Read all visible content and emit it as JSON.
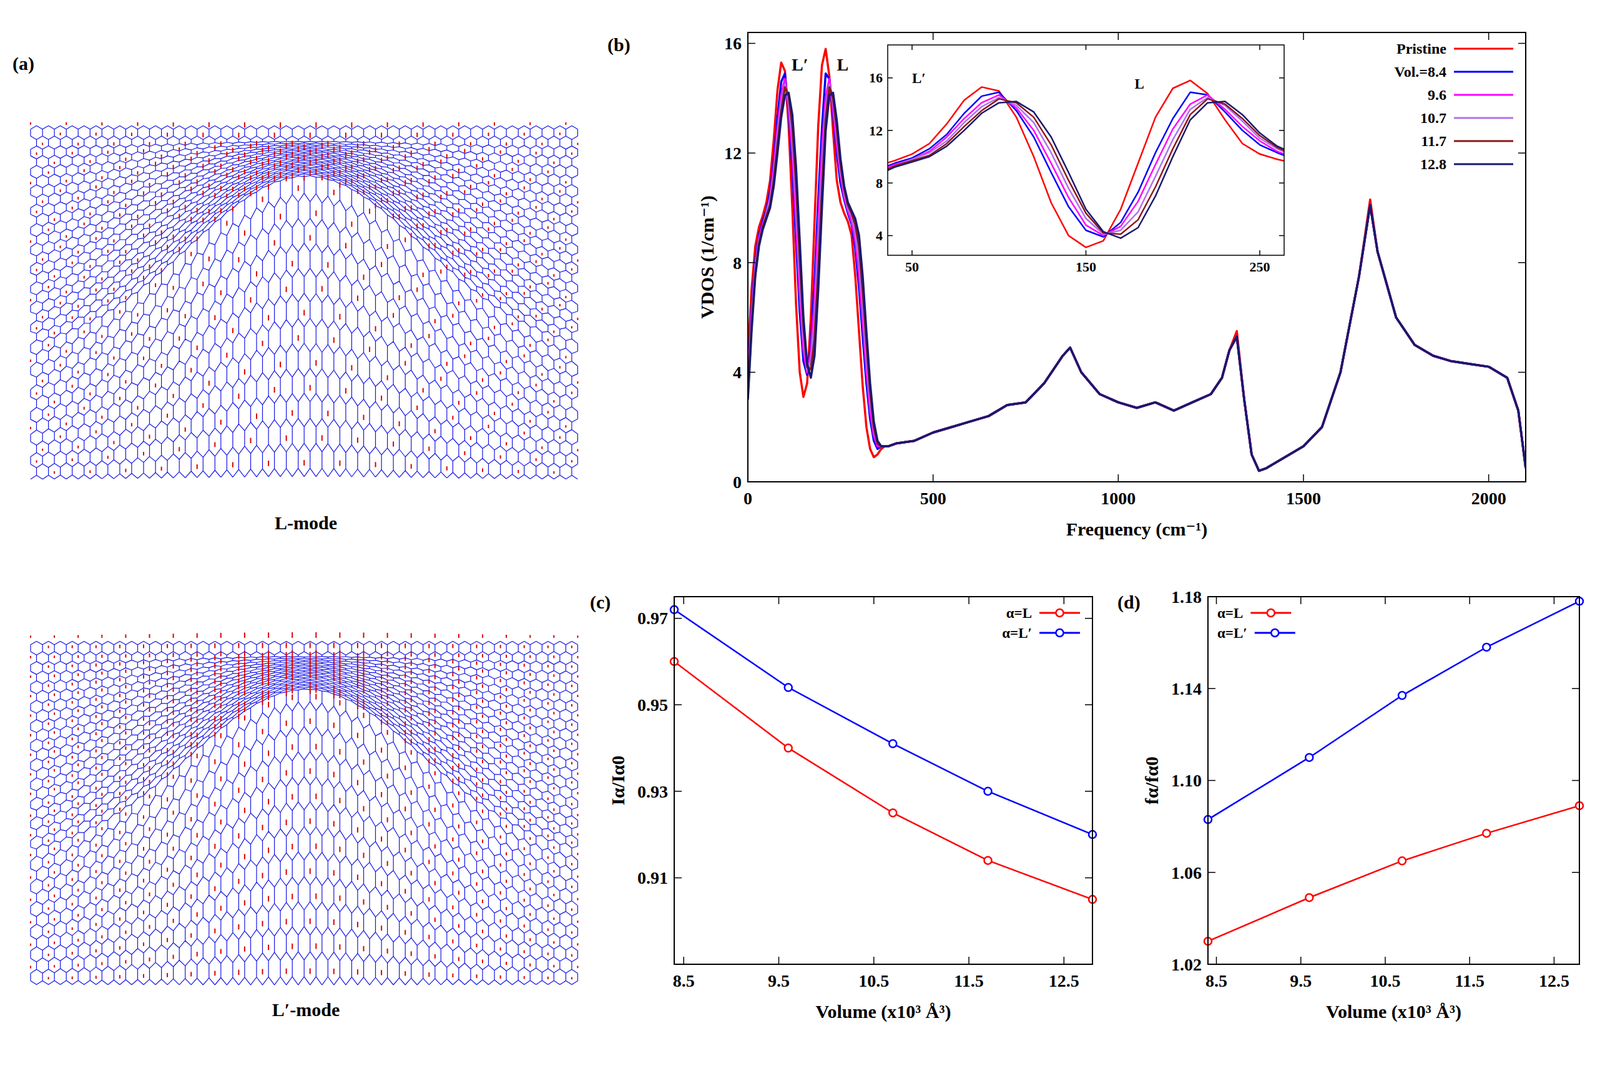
{
  "panel_a": {
    "label": "(a)",
    "modes": [
      "L-mode",
      "L′-mode"
    ]
  },
  "chart_data": [
    {
      "type": "line",
      "label": "(b)",
      "x_label": "Frequency (cm⁻¹)",
      "y_label": "VDOS (1/cm⁻¹)",
      "x": [
        0,
        10,
        20,
        30,
        40,
        50,
        60,
        70,
        80,
        90,
        100,
        110,
        120,
        130,
        140,
        150,
        160,
        170,
        180,
        190,
        200,
        210,
        220,
        230,
        240,
        250,
        260,
        270,
        280,
        290,
        300,
        310,
        320,
        330,
        340,
        350,
        360,
        370,
        380,
        400,
        450,
        500,
        550,
        600,
        650,
        700,
        750,
        800,
        850,
        870,
        900,
        950,
        1000,
        1050,
        1100,
        1150,
        1200,
        1250,
        1280,
        1300,
        1320,
        1340,
        1360,
        1380,
        1400,
        1450,
        1500,
        1550,
        1600,
        1650,
        1680,
        1700,
        1750,
        1800,
        1850,
        1900,
        1950,
        2000,
        2050,
        2080,
        2100
      ],
      "xlim": [
        0,
        2100
      ],
      "xticks": [
        0,
        500,
        1000,
        1500,
        2000
      ],
      "ylim": [
        0,
        16.4
      ],
      "yticks": [
        0,
        4,
        8,
        12,
        16
      ],
      "legend": "top-right",
      "annotations": [
        {
          "text": "L′",
          "x": 118,
          "y": 15.0
        },
        {
          "text": "L",
          "x": 240,
          "y": 15.0
        }
      ],
      "series": [
        {
          "name": "Pristine",
          "color": "#ff0000",
          "values": [
            4.5,
            7.0,
            8.6,
            9.3,
            9.7,
            10.2,
            11.0,
            12.5,
            14.3,
            15.3,
            15.0,
            13.0,
            10.0,
            6.5,
            4.0,
            3.1,
            3.6,
            6.0,
            9.5,
            13.0,
            15.2,
            15.8,
            14.8,
            12.8,
            11.0,
            10.2,
            9.8,
            9.5,
            9.0,
            7.5,
            5.5,
            3.5,
            2.0,
            1.2,
            0.9,
            1.0,
            1.2,
            1.3,
            1.3,
            1.4,
            1.5,
            1.8,
            2.0,
            2.2,
            2.4,
            2.8,
            2.9,
            3.6,
            4.6,
            4.9,
            4.0,
            3.2,
            2.9,
            2.7,
            2.9,
            2.6,
            2.9,
            3.2,
            3.8,
            4.8,
            5.5,
            3.0,
            1.0,
            0.4,
            0.5,
            0.9,
            1.3,
            2.0,
            4.0,
            7.5,
            10.3,
            8.4,
            6.0,
            5.0,
            4.6,
            4.4,
            4.3,
            4.2,
            3.8,
            2.6,
            0.5
          ]
        },
        {
          "name": "Vol.=8.4",
          "color": "#0000ff",
          "values": [
            3.8,
            6.3,
            8.1,
            9.0,
            9.5,
            9.9,
            10.6,
            11.7,
            13.3,
            14.6,
            14.9,
            13.5,
            11.5,
            8.8,
            6.2,
            4.4,
            3.9,
            5.0,
            7.3,
            10.3,
            12.9,
            14.9,
            14.7,
            13.4,
            12.0,
            10.9,
            10.3,
            9.8,
            9.4,
            8.5,
            7.1,
            5.3,
            3.6,
            2.3,
            1.5,
            1.2,
            1.3,
            1.3,
            1.3,
            1.4,
            1.5,
            1.8,
            2.0,
            2.2,
            2.4,
            2.8,
            2.9,
            3.6,
            4.6,
            4.9,
            4.0,
            3.2,
            2.9,
            2.7,
            2.9,
            2.6,
            2.9,
            3.2,
            3.8,
            4.8,
            5.3,
            3.0,
            1.0,
            0.4,
            0.5,
            0.9,
            1.3,
            2.0,
            4.0,
            7.5,
            10.1,
            8.4,
            6.0,
            5.0,
            4.6,
            4.4,
            4.3,
            4.2,
            3.8,
            2.6,
            0.5
          ]
        },
        {
          "name": "9.6",
          "color": "#ff00ff",
          "values": [
            3.6,
            6.1,
            7.9,
            8.9,
            9.4,
            9.8,
            10.4,
            11.5,
            12.9,
            14.1,
            14.7,
            13.7,
            12.0,
            9.5,
            6.9,
            4.8,
            4.0,
            4.7,
            6.6,
            9.4,
            12.1,
            14.0,
            14.7,
            13.6,
            12.3,
            11.2,
            10.4,
            9.9,
            9.5,
            8.8,
            7.6,
            5.9,
            4.1,
            2.6,
            1.7,
            1.3,
            1.3,
            1.3,
            1.3,
            1.4,
            1.5,
            1.8,
            2.0,
            2.2,
            2.4,
            2.8,
            2.9,
            3.6,
            4.6,
            4.9,
            4.0,
            3.2,
            2.9,
            2.7,
            2.9,
            2.6,
            2.9,
            3.2,
            3.8,
            4.8,
            5.3,
            3.0,
            1.0,
            0.4,
            0.5,
            0.9,
            1.3,
            2.0,
            4.0,
            7.5,
            10.1,
            8.4,
            6.0,
            5.0,
            4.6,
            4.4,
            4.3,
            4.2,
            3.8,
            2.6,
            0.5
          ]
        },
        {
          "name": "10.7",
          "color": "#b070f0",
          "values": [
            3.4,
            5.9,
            7.8,
            8.8,
            9.3,
            9.8,
            10.3,
            11.2,
            12.6,
            13.8,
            14.5,
            13.9,
            12.6,
            10.3,
            7.6,
            5.3,
            4.1,
            4.4,
            5.8,
            8.5,
            11.3,
            13.6,
            14.5,
            13.9,
            12.7,
            11.4,
            10.6,
            10.0,
            9.7,
            9.1,
            8.1,
            6.5,
            4.6,
            3.0,
            1.9,
            1.4,
            1.3,
            1.3,
            1.3,
            1.4,
            1.5,
            1.8,
            2.0,
            2.2,
            2.4,
            2.8,
            2.9,
            3.6,
            4.6,
            4.9,
            4.0,
            3.2,
            2.9,
            2.7,
            2.9,
            2.6,
            2.9,
            3.2,
            3.8,
            4.8,
            5.3,
            3.0,
            1.0,
            0.4,
            0.5,
            0.9,
            1.3,
            2.0,
            4.0,
            7.5,
            10.1,
            8.4,
            6.0,
            5.0,
            4.6,
            4.4,
            4.3,
            4.2,
            3.8,
            2.6,
            0.5
          ]
        },
        {
          "name": "11.7",
          "color": "#8b1a1a",
          "values": [
            3.2,
            5.7,
            7.6,
            8.7,
            9.3,
            9.7,
            10.1,
            11.0,
            12.3,
            13.5,
            14.4,
            14.1,
            13.0,
            10.9,
            8.2,
            5.7,
            4.2,
            4.1,
            5.2,
            7.7,
            10.6,
            13.2,
            14.4,
            14.0,
            12.9,
            11.6,
            10.7,
            10.1,
            9.8,
            9.4,
            8.6,
            7.0,
            5.1,
            3.3,
            2.0,
            1.4,
            1.3,
            1.3,
            1.3,
            1.4,
            1.5,
            1.8,
            2.0,
            2.2,
            2.4,
            2.8,
            2.9,
            3.6,
            4.6,
            4.9,
            4.0,
            3.2,
            2.9,
            2.7,
            2.9,
            2.6,
            2.9,
            3.2,
            3.8,
            4.8,
            5.3,
            3.0,
            1.0,
            0.4,
            0.5,
            0.9,
            1.3,
            2.0,
            4.0,
            7.5,
            10.1,
            8.4,
            6.0,
            5.0,
            4.6,
            4.4,
            4.3,
            4.2,
            3.8,
            2.6,
            0.5
          ]
        },
        {
          "name": "12.8",
          "color": "#191970",
          "values": [
            3.0,
            5.5,
            7.5,
            8.6,
            9.2,
            9.6,
            10.0,
            10.8,
            12.0,
            13.3,
            14.1,
            14.2,
            13.4,
            11.5,
            8.8,
            6.0,
            4.3,
            3.8,
            4.6,
            7.0,
            10.0,
            12.8,
            14.1,
            14.2,
            13.2,
            11.8,
            10.8,
            10.2,
            9.9,
            9.6,
            9.0,
            7.5,
            5.5,
            3.6,
            2.2,
            1.5,
            1.3,
            1.3,
            1.3,
            1.4,
            1.5,
            1.8,
            2.0,
            2.2,
            2.4,
            2.8,
            2.9,
            3.6,
            4.6,
            4.9,
            4.0,
            3.2,
            2.9,
            2.7,
            2.9,
            2.6,
            2.9,
            3.2,
            3.8,
            4.8,
            5.3,
            3.0,
            1.0,
            0.4,
            0.5,
            0.9,
            1.3,
            2.0,
            4.0,
            7.5,
            10.1,
            8.4,
            6.0,
            5.0,
            4.6,
            4.4,
            4.3,
            4.2,
            3.8,
            2.6,
            0.5
          ]
        }
      ]
    },
    {
      "type": "inset",
      "xlim": [
        36,
        264
      ],
      "xticks": [
        50,
        150,
        250
      ],
      "ylim": [
        2.5,
        18.5
      ],
      "yticks": [
        4,
        8,
        12,
        16
      ],
      "annotations": [
        {
          "text": "L′",
          "x": 50,
          "y": 15.6
        },
        {
          "text": "L",
          "x": 178,
          "y": 15.2
        }
      ]
    },
    {
      "type": "line",
      "label": "(c)",
      "x_label": "Volume (x10³ Å³)",
      "y_label": "Iα/Iα0",
      "x": [
        8.4,
        9.6,
        10.7,
        11.7,
        12.8
      ],
      "xlim": [
        8.4,
        12.8
      ],
      "xticks": [
        8.5,
        9.5,
        10.5,
        11.5,
        12.5
      ],
      "ylim": [
        0.89,
        0.975
      ],
      "yticks": [
        0.91,
        0.93,
        0.95,
        0.97
      ],
      "legend": "top-right",
      "marker": "circle",
      "series": [
        {
          "name": "α=L",
          "color": "#ff0000",
          "values": [
            0.96,
            0.94,
            0.925,
            0.914,
            0.905
          ]
        },
        {
          "name": "α=L′",
          "color": "#0000ff",
          "values": [
            0.972,
            0.954,
            0.941,
            0.93,
            0.92
          ]
        }
      ]
    },
    {
      "type": "line",
      "label": "(d)",
      "x_label": "Volume (x10³ Å³)",
      "y_label": "fα/fα0",
      "x": [
        8.4,
        9.6,
        10.7,
        11.7,
        12.8
      ],
      "xlim": [
        8.4,
        12.8
      ],
      "xticks": [
        8.5,
        9.5,
        10.5,
        11.5,
        12.5
      ],
      "ylim": [
        1.02,
        1.18
      ],
      "yticks": [
        1.02,
        1.06,
        {
          "value": 1.1,
          "label": "1.10"
        },
        1.14,
        1.18
      ],
      "legend": "top-left",
      "marker": "circle",
      "series": [
        {
          "name": "α=L",
          "color": "#ff0000",
          "values": [
            1.03,
            1.049,
            1.065,
            1.077,
            1.089
          ]
        },
        {
          "name": "α=L′",
          "color": "#0000ff",
          "values": [
            1.083,
            1.11,
            1.137,
            1.158,
            1.178
          ]
        }
      ]
    }
  ]
}
